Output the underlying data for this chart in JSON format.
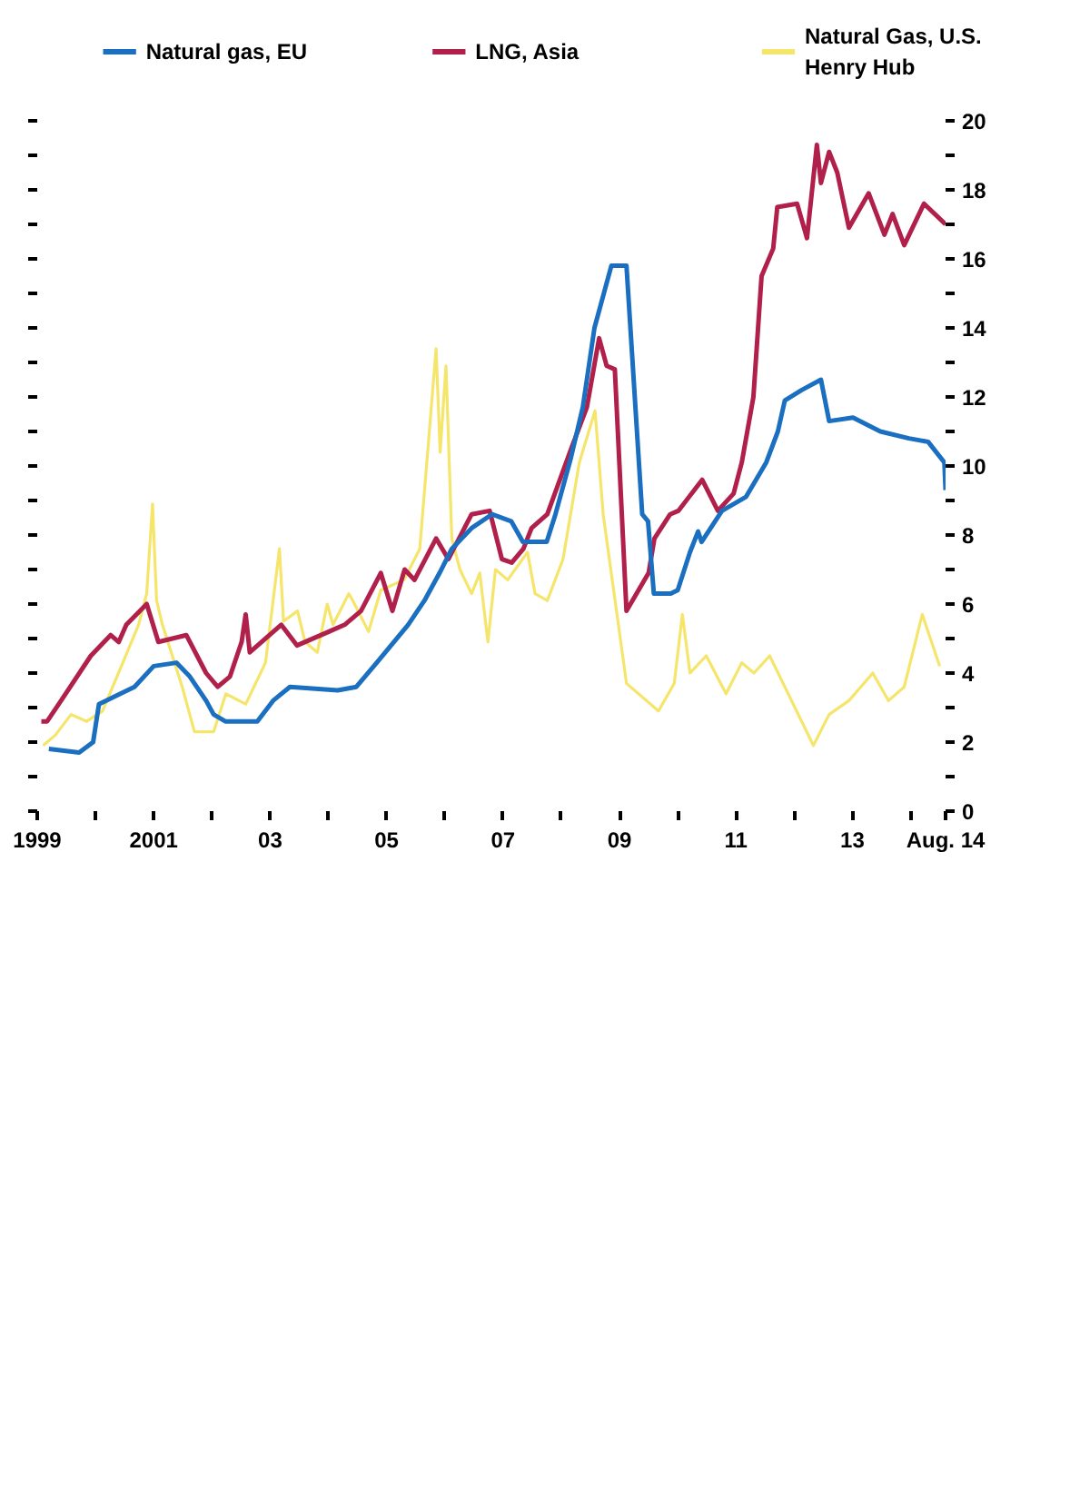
{
  "chart_data": {
    "type": "line",
    "xlim": [
      1999,
      2014.6
    ],
    "ylim": [
      0,
      20
    ],
    "xticks": [
      1999,
      {
        "value": 2000,
        "label": null
      },
      2001,
      {
        "value": 2002,
        "label": null
      },
      {
        "value": 2003,
        "label": "03"
      },
      {
        "value": 2004,
        "label": null
      },
      {
        "value": 2005,
        "label": "05"
      },
      {
        "value": 2006,
        "label": null
      },
      {
        "value": 2007,
        "label": "07"
      },
      {
        "value": 2008,
        "label": null
      },
      {
        "value": 2009,
        "label": "09"
      },
      {
        "value": 2010,
        "label": null
      },
      {
        "value": 2011,
        "label": "11"
      },
      {
        "value": 2012,
        "label": null
      },
      {
        "value": 2013,
        "label": "13"
      },
      {
        "value": 2014,
        "label": null
      },
      {
        "value": 2014.6,
        "label": "Aug. 14"
      }
    ],
    "yticks": [
      0,
      {
        "value": 1,
        "label": null
      },
      2,
      {
        "value": 3,
        "label": null
      },
      4,
      {
        "value": 5,
        "label": null
      },
      6,
      {
        "value": 7,
        "label": null
      },
      8,
      {
        "value": 9,
        "label": null
      },
      10,
      {
        "value": 11,
        "label": null
      },
      12,
      {
        "value": 13,
        "label": null
      },
      14,
      {
        "value": 15,
        "label": null
      },
      16,
      {
        "value": 17,
        "label": null
      },
      18,
      {
        "value": 19,
        "label": null
      },
      20
    ],
    "grid": false,
    "legend": "top",
    "series": [
      {
        "name": "Natural gas, EU",
        "color": "#1a6fc0",
        "x": [
          1999.2,
          1999.72,
          1999.96,
          2000.06,
          2000.67,
          2001.0,
          2001.39,
          2001.62,
          2001.9,
          2002.03,
          2002.23,
          2002.78,
          2003.05,
          2003.34,
          2004.16,
          2004.48,
          2004.83,
          2005.37,
          2005.65,
          2005.91,
          2006.12,
          2006.46,
          2006.81,
          2007.14,
          2007.34,
          2007.75,
          2007.9,
          2008.16,
          2008.37,
          2008.57,
          2008.86,
          2009.12,
          2009.39,
          2009.49,
          2009.59,
          2009.88,
          2010.0,
          2010.21,
          2010.35,
          2010.41,
          2010.76,
          2011.17,
          2011.52,
          2011.72,
          2011.84,
          2012.13,
          2012.46,
          2012.6,
          2013.01,
          2013.48,
          2013.97,
          2014.3,
          2014.58,
          2014.6
        ],
        "values": [
          1.8,
          1.7,
          2.0,
          3.1,
          3.6,
          4.2,
          4.3,
          3.9,
          3.2,
          2.8,
          2.6,
          2.6,
          3.2,
          3.6,
          3.5,
          3.6,
          4.3,
          5.4,
          6.1,
          6.9,
          7.6,
          8.2,
          8.6,
          8.4,
          7.8,
          7.8,
          8.6,
          10.2,
          11.7,
          14.0,
          15.8,
          15.8,
          8.6,
          8.4,
          6.3,
          6.3,
          6.4,
          7.5,
          8.1,
          7.8,
          8.7,
          9.1,
          10.1,
          11.0,
          11.9,
          12.2,
          12.5,
          11.3,
          11.4,
          11.0,
          10.8,
          10.7,
          10.1,
          9.3
        ]
      },
      {
        "name": "LNG, Asia",
        "color": "#b0204a",
        "x": [
          1999.07,
          1999.17,
          1999.37,
          1999.92,
          2000.26,
          2000.4,
          2000.53,
          2000.88,
          2001.08,
          2001.56,
          2001.9,
          2002.1,
          2002.31,
          2002.51,
          2002.58,
          2002.65,
          2003.19,
          2003.46,
          2004.01,
          2004.28,
          2004.56,
          2004.9,
          2005.1,
          2005.31,
          2005.48,
          2005.85,
          2006.06,
          2006.46,
          2006.77,
          2006.98,
          2007.15,
          2007.35,
          2007.49,
          2007.76,
          2008.17,
          2008.44,
          2008.65,
          2008.78,
          2008.92,
          2009.12,
          2009.5,
          2009.6,
          2009.87,
          2010.01,
          2010.42,
          2010.69,
          2010.96,
          2011.1,
          2011.3,
          2011.44,
          2011.64,
          2011.71,
          2012.05,
          2012.22,
          2012.39,
          2012.46,
          2012.6,
          2012.74,
          2012.94,
          2013.28,
          2013.55,
          2013.69,
          2013.89,
          2014.23,
          2014.6
        ],
        "values": [
          2.6,
          2.6,
          3.1,
          4.5,
          5.1,
          4.9,
          5.4,
          6.0,
          4.9,
          5.1,
          4.0,
          3.6,
          3.9,
          4.9,
          5.7,
          4.6,
          5.4,
          4.8,
          5.2,
          5.4,
          5.8,
          6.9,
          5.8,
          7.0,
          6.7,
          7.9,
          7.3,
          8.6,
          8.7,
          7.3,
          7.2,
          7.6,
          8.2,
          8.6,
          10.5,
          11.7,
          13.7,
          12.9,
          12.8,
          5.8,
          6.9,
          7.9,
          8.6,
          8.7,
          9.6,
          8.7,
          9.2,
          10.1,
          12.0,
          15.5,
          16.3,
          17.5,
          17.6,
          16.6,
          19.3,
          18.2,
          19.1,
          18.5,
          16.9,
          17.9,
          16.7,
          17.3,
          16.4,
          17.6,
          17.0
        ]
      },
      {
        "name": "Natural Gas, U.S.\nHenry Hub",
        "color": "#f5e56b",
        "x": [
          1999.1,
          1999.31,
          1999.58,
          1999.85,
          2000.12,
          2000.47,
          2000.74,
          2000.88,
          2000.98,
          2001.05,
          2001.15,
          2001.49,
          2001.7,
          2002.03,
          2002.24,
          2002.58,
          2002.92,
          2003.16,
          2003.23,
          2003.47,
          2003.6,
          2003.81,
          2003.98,
          2004.08,
          2004.35,
          2004.42,
          2004.69,
          2004.9,
          2005.3,
          2005.57,
          2005.85,
          2005.92,
          2006.02,
          2006.12,
          2006.26,
          2006.46,
          2006.6,
          2006.74,
          2006.87,
          2007.08,
          2007.42,
          2007.55,
          2007.76,
          2008.03,
          2008.31,
          2008.58,
          2008.72,
          2009.12,
          2009.67,
          2009.94,
          2010.08,
          2010.21,
          2010.49,
          2010.83,
          2011.1,
          2011.31,
          2011.58,
          2012.33,
          2012.6,
          2012.94,
          2013.35,
          2013.62,
          2013.89,
          2014.2,
          2014.5
        ],
        "values": [
          1.9,
          2.2,
          2.8,
          2.6,
          2.9,
          4.3,
          5.4,
          6.3,
          8.9,
          6.1,
          5.4,
          3.6,
          2.3,
          2.3,
          3.4,
          3.1,
          4.3,
          7.6,
          5.5,
          5.8,
          4.9,
          4.6,
          6.0,
          5.4,
          6.3,
          6.1,
          5.2,
          6.4,
          6.7,
          7.6,
          13.4,
          10.4,
          12.9,
          7.9,
          7.0,
          6.3,
          6.9,
          4.9,
          7.0,
          6.7,
          7.5,
          6.3,
          6.1,
          7.3,
          10.1,
          11.6,
          8.6,
          3.7,
          2.9,
          3.7,
          5.7,
          4.0,
          4.5,
          3.4,
          4.3,
          4.0,
          4.5,
          1.9,
          2.8,
          3.2,
          4.0,
          3.2,
          3.6,
          5.7,
          4.2
        ]
      }
    ]
  }
}
